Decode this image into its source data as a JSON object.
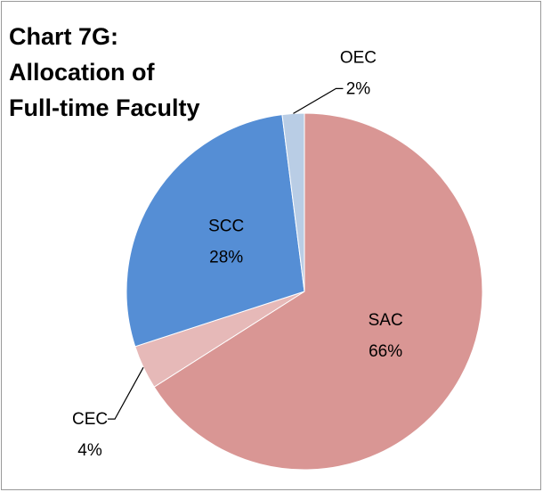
{
  "chart_data": {
    "type": "pie",
    "title": [
      "Chart 7G:",
      "Allocation of",
      "Full-time Faculty"
    ],
    "categories": [
      "SAC",
      "CEC",
      "SCC",
      "OEC"
    ],
    "values": [
      66,
      4,
      28,
      2
    ],
    "value_labels": [
      "66%",
      "4%",
      "28%",
      "2%"
    ],
    "colors": [
      "#d99694",
      "#e6b9b8",
      "#558ed5",
      "#b9cde5"
    ]
  }
}
